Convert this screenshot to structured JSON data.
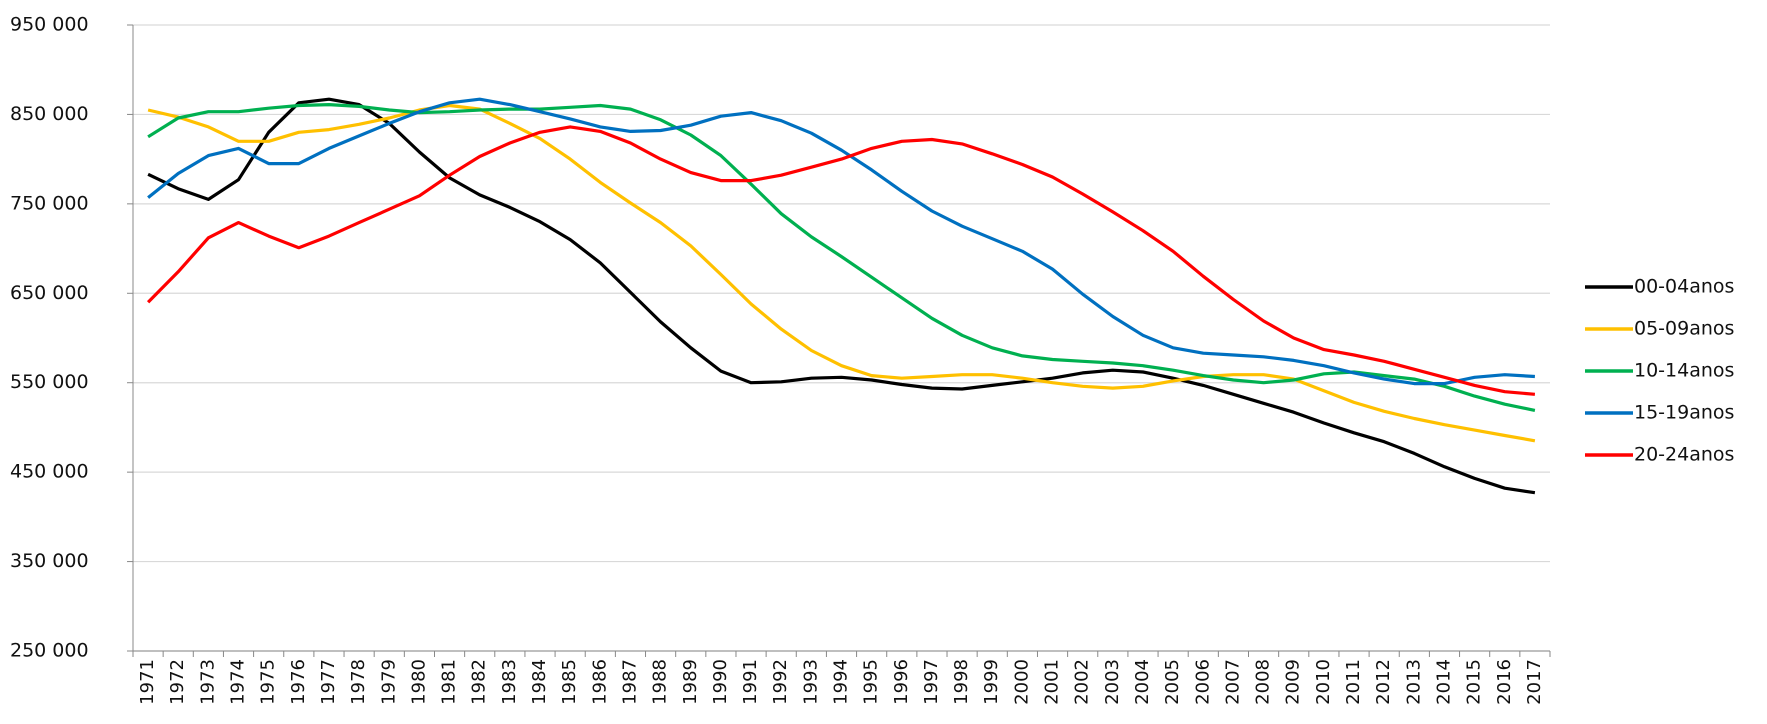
{
  "chart_data": {
    "type": "line",
    "categories": [
      "1971",
      "1972",
      "1973",
      "1974",
      "1975",
      "1976",
      "1977",
      "1978",
      "1979",
      "1980",
      "1981",
      "1982",
      "1983",
      "1984",
      "1985",
      "1986",
      "1987",
      "1988",
      "1989",
      "1990",
      "1991",
      "1992",
      "1993",
      "1994",
      "1995",
      "1996",
      "1997",
      "1998",
      "1999",
      "2000",
      "2001",
      "2002",
      "2003",
      "2004",
      "2005",
      "2006",
      "2007",
      "2008",
      "2009",
      "2010",
      "2011",
      "2012",
      "2013",
      "2014",
      "2015",
      "2016",
      "2017"
    ],
    "series": [
      {
        "name": "00-04anos",
        "color": "#000000",
        "values": [
          783000,
          767000,
          755000,
          777000,
          830000,
          863000,
          867000,
          861000,
          840000,
          808000,
          779000,
          760000,
          746000,
          730000,
          710000,
          684000,
          651000,
          618000,
          589000,
          563000,
          550000,
          551000,
          555000,
          556000,
          553000,
          548000,
          544000,
          543000,
          547000,
          551000,
          555000,
          561000,
          564000,
          562000,
          555000,
          547000,
          537000,
          527000,
          517000,
          505000,
          494000,
          484000,
          471000,
          456000,
          443000,
          432000,
          427000
        ]
      },
      {
        "name": "05-09anos",
        "color": "#ffc000",
        "values": [
          855000,
          847000,
          836000,
          820000,
          820000,
          830000,
          833000,
          839000,
          846000,
          855000,
          860000,
          856000,
          840000,
          823000,
          800000,
          774000,
          751000,
          729000,
          703000,
          671000,
          638000,
          610000,
          586000,
          569000,
          558000,
          555000,
          557000,
          559000,
          559000,
          555000,
          550000,
          546000,
          544000,
          546000,
          552000,
          557000,
          559000,
          559000,
          554000,
          541000,
          528000,
          518000,
          510000,
          503000,
          497000,
          491000,
          485000
        ]
      },
      {
        "name": "10-14anos",
        "color": "#00b050",
        "values": [
          825000,
          846000,
          853000,
          853000,
          857000,
          860000,
          861000,
          859000,
          855000,
          852000,
          853000,
          855000,
          856000,
          856000,
          858000,
          860000,
          856000,
          844000,
          827000,
          804000,
          772000,
          739000,
          713000,
          691000,
          668000,
          645000,
          622000,
          603000,
          589000,
          580000,
          576000,
          574000,
          572000,
          569000,
          564000,
          558000,
          553000,
          550000,
          553000,
          560000,
          562000,
          558000,
          554000,
          546000,
          535000,
          526000,
          519000
        ]
      },
      {
        "name": "15-19anos",
        "color": "#0070c0",
        "values": [
          757000,
          784000,
          804000,
          812000,
          795000,
          795000,
          812000,
          826000,
          840000,
          853000,
          863000,
          867000,
          861000,
          853000,
          845000,
          836000,
          831000,
          832000,
          838000,
          848000,
          852000,
          843000,
          829000,
          810000,
          788000,
          764000,
          742000,
          725000,
          711000,
          697000,
          677000,
          649000,
          624000,
          603000,
          589000,
          583000,
          581000,
          579000,
          575000,
          569000,
          561000,
          554000,
          549000,
          549000,
          556000,
          559000,
          557000
        ]
      },
      {
        "name": "20-24anos",
        "color": "#ff0000",
        "values": [
          640000,
          674000,
          712000,
          729000,
          714000,
          701000,
          714000,
          729000,
          744000,
          759000,
          782000,
          803000,
          818000,
          830000,
          836000,
          831000,
          818000,
          800000,
          785000,
          776000,
          776000,
          782000,
          791000,
          800000,
          812000,
          820000,
          822000,
          817000,
          806000,
          794000,
          780000,
          761000,
          741000,
          720000,
          697000,
          669000,
          643000,
          619000,
          600000,
          587000,
          581000,
          574000,
          565000,
          556000,
          547000,
          540000,
          537000
        ]
      }
    ],
    "ylim": [
      250000,
      950000
    ],
    "yticks": [
      {
        "value": 250000,
        "label": "250 000"
      },
      {
        "value": 350000,
        "label": "350 000"
      },
      {
        "value": 450000,
        "label": "450 000"
      },
      {
        "value": 550000,
        "label": "550 000"
      },
      {
        "value": 650000,
        "label": "650 000"
      },
      {
        "value": 750000,
        "label": "750 000"
      },
      {
        "value": 850000,
        "label": "850 000"
      },
      {
        "value": 950000,
        "label": "950 000"
      }
    ],
    "grid": true,
    "legend": "right"
  }
}
